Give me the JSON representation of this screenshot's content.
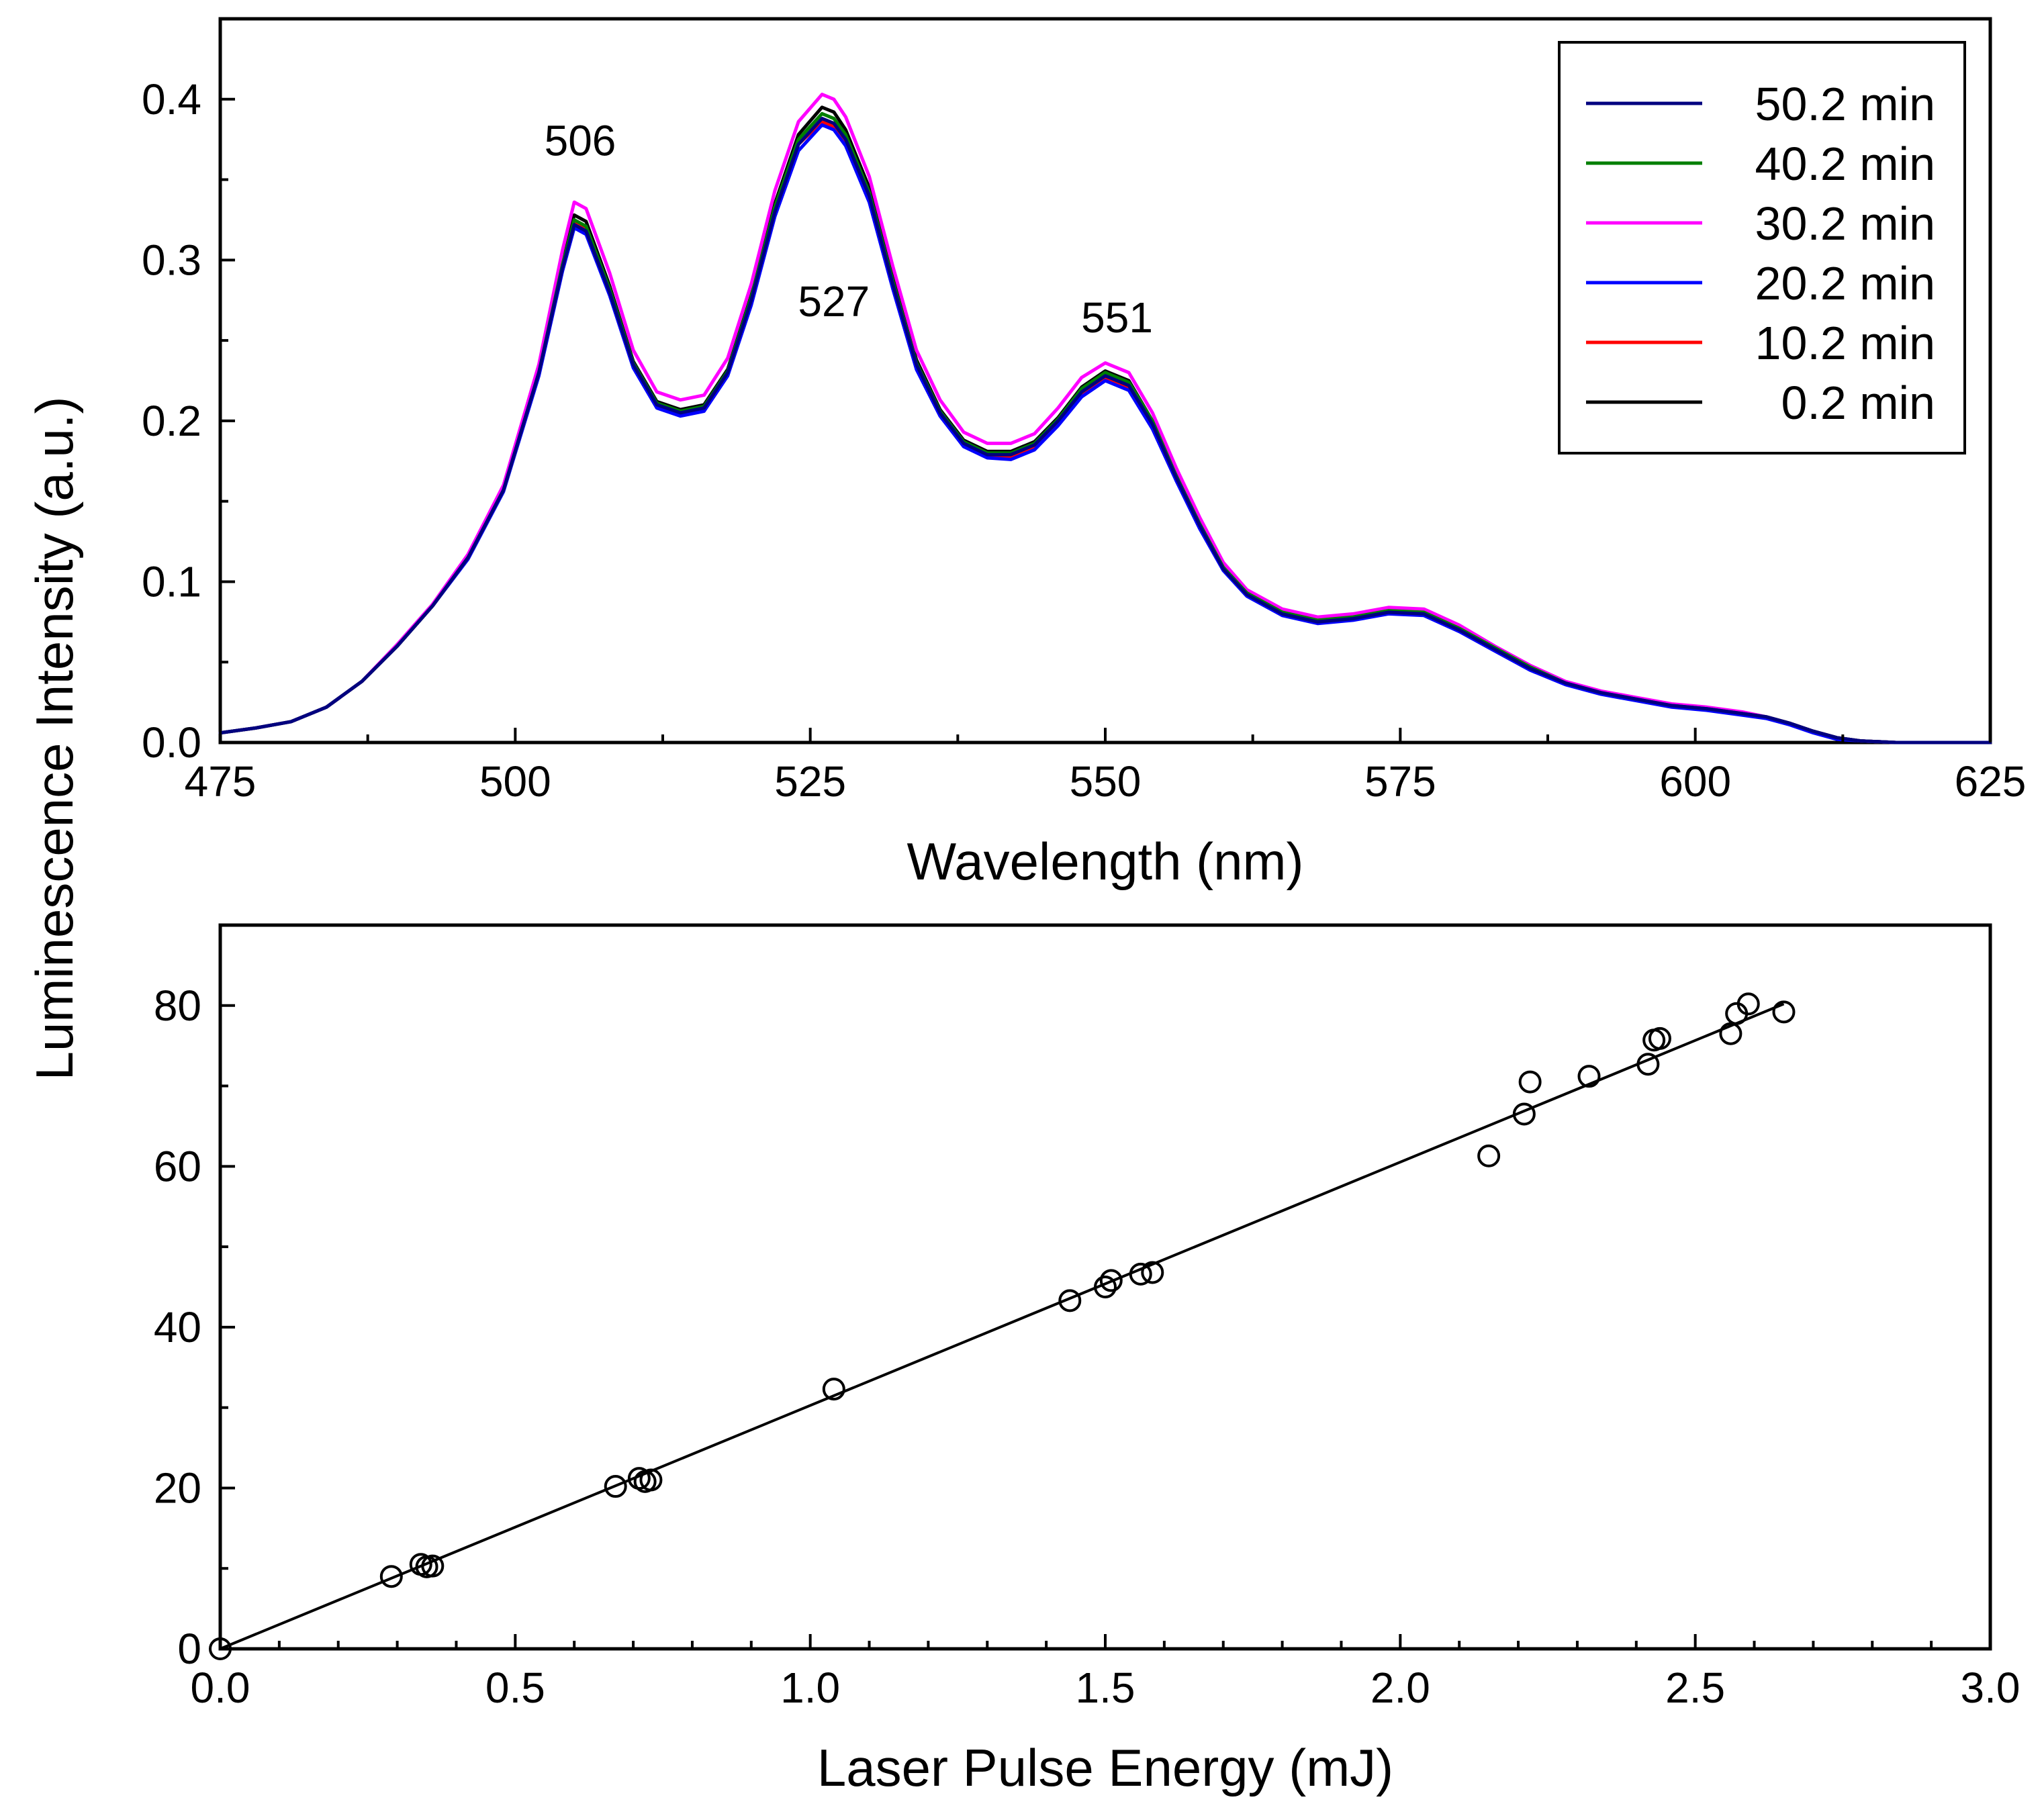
{
  "chart_data": [
    {
      "type": "line",
      "xlabel": "Wavelength (nm)",
      "ylabel": "Luminescence Intensity (a.u.)",
      "xlim": [
        475,
        625
      ],
      "ylim": [
        0,
        0.45
      ],
      "xticks": [
        475,
        500,
        525,
        550,
        575,
        600,
        625
      ],
      "xtick_labels": [
        "475",
        "500",
        "525",
        "550",
        "575",
        "600",
        "625"
      ],
      "yticks": [
        0.0,
        0.1,
        0.2,
        0.3,
        0.4
      ],
      "ytick_labels": [
        "0.0",
        "0.1",
        "0.2",
        "0.3",
        "0.4"
      ],
      "legend_position": "top-right",
      "annotations": [
        {
          "text": "506",
          "x": 505.5,
          "y": 0.365
        },
        {
          "text": "527",
          "x": 527,
          "y": 0.265
        },
        {
          "text": "551",
          "x": 551,
          "y": 0.255
        }
      ],
      "x": [
        475,
        478,
        481,
        484,
        487,
        490,
        493,
        496,
        499,
        502,
        504,
        505,
        506,
        508,
        510,
        512,
        514,
        516,
        518,
        520,
        522,
        524,
        526,
        527,
        528,
        530,
        532,
        534,
        536,
        538,
        540,
        542,
        544,
        546,
        548,
        550,
        552,
        554,
        556,
        558,
        560,
        562,
        565,
        568,
        571,
        574,
        577,
        580,
        583,
        586,
        589,
        592,
        595,
        598,
        601,
        604,
        606,
        608,
        610,
        612,
        614,
        617,
        620,
        623,
        625
      ],
      "series": [
        {
          "name": "50.2 min",
          "color": "#00007f",
          "values": [
            0.006,
            0.009,
            0.013,
            0.022,
            0.038,
            0.06,
            0.085,
            0.115,
            0.157,
            0.23,
            0.295,
            0.322,
            0.318,
            0.28,
            0.235,
            0.21,
            0.205,
            0.208,
            0.23,
            0.275,
            0.33,
            0.372,
            0.388,
            0.385,
            0.375,
            0.34,
            0.285,
            0.235,
            0.205,
            0.186,
            0.179,
            0.179,
            0.185,
            0.2,
            0.218,
            0.228,
            0.222,
            0.198,
            0.165,
            0.135,
            0.108,
            0.092,
            0.08,
            0.075,
            0.077,
            0.081,
            0.08,
            0.07,
            0.058,
            0.046,
            0.037,
            0.031,
            0.027,
            0.023,
            0.021,
            0.018,
            0.016,
            0.012,
            0.007,
            0.003,
            0.001,
            0,
            0,
            0,
            0
          ]
        },
        {
          "name": "40.2 min",
          "color": "#007f00",
          "values": [
            0.006,
            0.009,
            0.013,
            0.022,
            0.038,
            0.06,
            0.085,
            0.115,
            0.157,
            0.23,
            0.297,
            0.325,
            0.321,
            0.282,
            0.236,
            0.211,
            0.206,
            0.209,
            0.231,
            0.277,
            0.333,
            0.375,
            0.391,
            0.388,
            0.378,
            0.342,
            0.287,
            0.236,
            0.206,
            0.187,
            0.18,
            0.18,
            0.186,
            0.201,
            0.22,
            0.23,
            0.224,
            0.2,
            0.166,
            0.136,
            0.109,
            0.093,
            0.081,
            0.076,
            0.078,
            0.082,
            0.081,
            0.071,
            0.059,
            0.047,
            0.037,
            0.031,
            0.027,
            0.023,
            0.021,
            0.018,
            0.016,
            0.012,
            0.007,
            0.003,
            0.001,
            0,
            0,
            0,
            0
          ]
        },
        {
          "name": "30.2 min",
          "color": "#ff00ff",
          "values": [
            0.006,
            0.009,
            0.013,
            0.022,
            0.038,
            0.061,
            0.086,
            0.117,
            0.16,
            0.235,
            0.306,
            0.336,
            0.332,
            0.292,
            0.244,
            0.218,
            0.213,
            0.216,
            0.239,
            0.285,
            0.343,
            0.386,
            0.403,
            0.4,
            0.389,
            0.352,
            0.296,
            0.244,
            0.213,
            0.193,
            0.186,
            0.186,
            0.192,
            0.208,
            0.227,
            0.236,
            0.23,
            0.205,
            0.171,
            0.14,
            0.112,
            0.095,
            0.083,
            0.078,
            0.08,
            0.084,
            0.083,
            0.073,
            0.06,
            0.048,
            0.038,
            0.032,
            0.028,
            0.024,
            0.022,
            0.019,
            0.016,
            0.012,
            0.007,
            0.003,
            0.001,
            0,
            0,
            0,
            0
          ]
        },
        {
          "name": "20.2 min",
          "color": "#0000ff",
          "values": [
            0.006,
            0.009,
            0.013,
            0.022,
            0.038,
            0.06,
            0.085,
            0.114,
            0.156,
            0.228,
            0.293,
            0.32,
            0.316,
            0.278,
            0.233,
            0.208,
            0.203,
            0.206,
            0.228,
            0.272,
            0.327,
            0.368,
            0.384,
            0.381,
            0.371,
            0.336,
            0.282,
            0.232,
            0.203,
            0.184,
            0.177,
            0.176,
            0.182,
            0.197,
            0.215,
            0.225,
            0.219,
            0.195,
            0.163,
            0.133,
            0.107,
            0.091,
            0.079,
            0.074,
            0.076,
            0.08,
            0.079,
            0.069,
            0.057,
            0.045,
            0.036,
            0.03,
            0.026,
            0.022,
            0.02,
            0.017,
            0.015,
            0.011,
            0.006,
            0.002,
            0.001,
            0,
            0,
            0,
            0
          ]
        },
        {
          "name": "10.2 min",
          "color": "#ff0000",
          "values": [
            0.006,
            0.009,
            0.013,
            0.022,
            0.038,
            0.06,
            0.085,
            0.115,
            0.157,
            0.23,
            0.296,
            0.324,
            0.32,
            0.281,
            0.235,
            0.21,
            0.205,
            0.208,
            0.23,
            0.275,
            0.33,
            0.372,
            0.386,
            0.383,
            0.373,
            0.339,
            0.284,
            0.234,
            0.204,
            0.185,
            0.178,
            0.178,
            0.184,
            0.199,
            0.217,
            0.227,
            0.221,
            0.197,
            0.164,
            0.134,
            0.108,
            0.092,
            0.08,
            0.075,
            0.077,
            0.081,
            0.08,
            0.07,
            0.058,
            0.046,
            0.037,
            0.031,
            0.027,
            0.023,
            0.021,
            0.018,
            0.016,
            0.012,
            0.007,
            0.003,
            0.001,
            0,
            0,
            0,
            0
          ]
        },
        {
          "name": "0.2 min",
          "color": "#000000",
          "values": [
            0.006,
            0.009,
            0.013,
            0.022,
            0.038,
            0.06,
            0.085,
            0.115,
            0.158,
            0.232,
            0.3,
            0.328,
            0.324,
            0.284,
            0.237,
            0.212,
            0.207,
            0.21,
            0.232,
            0.278,
            0.335,
            0.378,
            0.395,
            0.392,
            0.381,
            0.345,
            0.289,
            0.238,
            0.207,
            0.188,
            0.181,
            0.181,
            0.187,
            0.202,
            0.221,
            0.231,
            0.225,
            0.2,
            0.167,
            0.137,
            0.11,
            0.093,
            0.081,
            0.076,
            0.078,
            0.082,
            0.081,
            0.071,
            0.059,
            0.047,
            0.037,
            0.031,
            0.027,
            0.023,
            0.021,
            0.018,
            0.016,
            0.012,
            0.007,
            0.003,
            0.001,
            0,
            0,
            0,
            0
          ]
        }
      ]
    },
    {
      "type": "scatter",
      "xlabel": "Laser Pulse Energy (mJ)",
      "ylabel": "Luminescence Intensity (a.u.)",
      "xlim": [
        0,
        3.0
      ],
      "ylim": [
        0,
        90
      ],
      "xticks": [
        0.0,
        0.5,
        1.0,
        1.5,
        2.0,
        2.5,
        3.0
      ],
      "xtick_labels": [
        "0.0",
        "0.5",
        "1.0",
        "1.5",
        "2.0",
        "2.5",
        "3.0"
      ],
      "yticks": [
        0,
        20,
        40,
        60,
        80
      ],
      "ytick_labels": [
        "0",
        "20",
        "40",
        "60",
        "80"
      ],
      "points": [
        {
          "x": 0.0,
          "y": 0.0
        },
        {
          "x": 0.29,
          "y": 9.0
        },
        {
          "x": 0.34,
          "y": 10.5
        },
        {
          "x": 0.35,
          "y": 10.2
        },
        {
          "x": 0.36,
          "y": 10.3
        },
        {
          "x": 0.67,
          "y": 20.2
        },
        {
          "x": 0.71,
          "y": 21.2
        },
        {
          "x": 0.72,
          "y": 20.8
        },
        {
          "x": 0.73,
          "y": 21.0
        },
        {
          "x": 1.04,
          "y": 32.3
        },
        {
          "x": 1.44,
          "y": 43.3
        },
        {
          "x": 1.5,
          "y": 45.0
        },
        {
          "x": 1.51,
          "y": 45.8
        },
        {
          "x": 1.56,
          "y": 46.6
        },
        {
          "x": 1.58,
          "y": 46.8
        },
        {
          "x": 2.15,
          "y": 61.3
        },
        {
          "x": 2.21,
          "y": 66.5
        },
        {
          "x": 2.22,
          "y": 70.5
        },
        {
          "x": 2.32,
          "y": 71.2
        },
        {
          "x": 2.42,
          "y": 72.7
        },
        {
          "x": 2.43,
          "y": 75.7
        },
        {
          "x": 2.44,
          "y": 75.9
        },
        {
          "x": 2.56,
          "y": 76.5
        },
        {
          "x": 2.57,
          "y": 79.0
        },
        {
          "x": 2.59,
          "y": 80.2
        },
        {
          "x": 2.65,
          "y": 79.2
        }
      ],
      "fit_line": {
        "x": [
          0.0,
          2.65
        ],
        "y": [
          0.0,
          80.2
        ]
      }
    }
  ]
}
